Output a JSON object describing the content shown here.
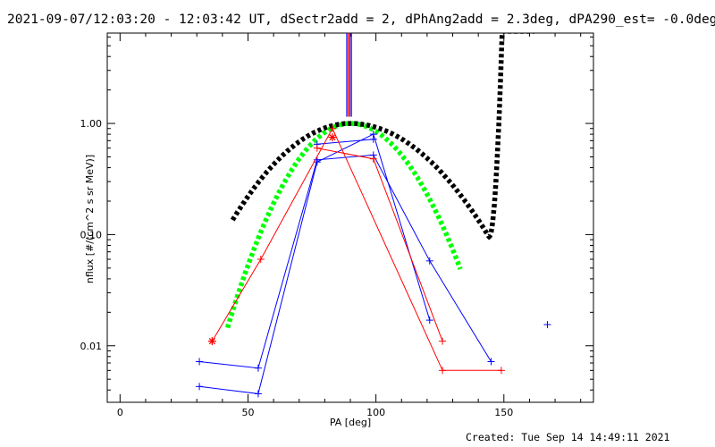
{
  "title": "2021-09-07/12:03:20 - 12:03:42 UT, dSectr2add = 2, dPhAng2add = 2.3deg, dPA290_est= -0.0deg",
  "footer": "Created: Tue Sep 14 14:49:11 2021",
  "chart_data": {
    "type": "line",
    "xlabel": "PA [deg]",
    "ylabel": "nflux [#/(cm^2 s sr MeV)]",
    "xlim": [
      -5,
      185
    ],
    "ylim": [
      0.0031,
      6.5
    ],
    "yscale": "log",
    "xticks": [
      0,
      50,
      100,
      150
    ],
    "xtick_labels": [
      "0",
      "50",
      "100",
      "150"
    ],
    "yticks": [
      0.01,
      0.1,
      1.0
    ],
    "ytick_labels": [
      "0.01",
      "0.10",
      "1.00"
    ],
    "colors": {
      "blue": "#0000ff",
      "red": "#ff0000",
      "green": "#00ff00",
      "black": "#000000"
    },
    "vertical_lines": {
      "x": [
        88.6,
        89.2,
        89.8,
        90.4
      ],
      "y_from": 1.15,
      "colors": [
        "#0000ff",
        "#ff0000",
        "#800080",
        "#0000ff"
      ]
    },
    "blue_series": [
      {
        "name": "blue-1",
        "x": [
          31,
          54,
          77,
          99,
          121,
          145
        ],
        "y": [
          0.0072,
          0.0063,
          0.47,
          0.52,
          0.058,
          0.0072
        ]
      },
      {
        "name": "blue-2",
        "x": [
          31,
          54,
          77,
          99,
          121
        ],
        "y": [
          0.0043,
          0.0037,
          0.45,
          0.8,
          0.017
        ]
      },
      {
        "name": "blue-3",
        "x": [
          77,
          99
        ],
        "y": [
          0.65,
          0.72
        ]
      }
    ],
    "blue_points": [
      {
        "x": 167,
        "y": 0.0155
      }
    ],
    "red_series": [
      {
        "name": "red-1",
        "x": [
          36,
          55,
          83,
          126,
          149
        ],
        "y": [
          0.011,
          0.06,
          0.9,
          0.006,
          0.006
        ]
      },
      {
        "name": "red-2",
        "x": [
          77,
          99,
          126
        ],
        "y": [
          0.6,
          0.48,
          0.011
        ]
      }
    ],
    "red_star_points": [
      {
        "x": 36,
        "y": 0.011
      },
      {
        "x": 83,
        "y": 0.75
      }
    ],
    "black_model": {
      "name": "black-dashed-model",
      "x_range": [
        44,
        162
      ],
      "peak_x": 90,
      "peak_y": 1.0
    },
    "green_model": {
      "name": "green-dashed-model",
      "x_range": [
        42,
        133
      ],
      "peak_x": 90,
      "peak_y": 1.0
    }
  }
}
